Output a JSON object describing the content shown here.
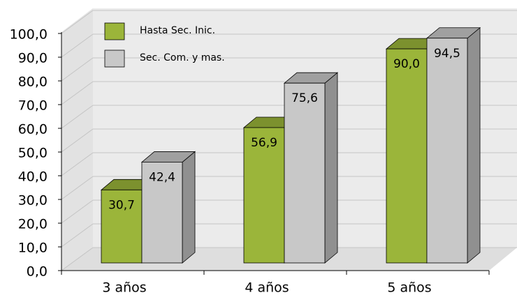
{
  "chart_data": {
    "type": "bar3d",
    "categories": [
      "3 años",
      "4 años",
      "5 años"
    ],
    "series": [
      {
        "name": "Hasta Sec. Inic.",
        "color": "#9bb53a",
        "values": [
          30.7,
          56.9,
          90.0
        ],
        "value_labels": [
          "30,7",
          "56,9",
          "90,0"
        ]
      },
      {
        "name": "Sec. Com. y mas.",
        "color": "#c8c8c8",
        "values": [
          42.4,
          75.6,
          94.5
        ],
        "value_labels": [
          "42,4",
          "75,6",
          "94,5"
        ]
      }
    ],
    "ylim": [
      0,
      100
    ],
    "yticks": [
      {
        "value": 0,
        "label": "0,0"
      },
      {
        "value": 10,
        "label": "10,0"
      },
      {
        "value": 20,
        "label": "20,0"
      },
      {
        "value": 30,
        "label": "30,0"
      },
      {
        "value": 40,
        "label": "40,0"
      },
      {
        "value": 50,
        "label": "50,0"
      },
      {
        "value": 60,
        "label": "60,0"
      },
      {
        "value": 70,
        "label": "70,0"
      },
      {
        "value": 80,
        "label": "80,0"
      },
      {
        "value": 90,
        "label": "90,0"
      },
      {
        "value": 100,
        "label": "100,0"
      }
    ],
    "grid": true
  }
}
